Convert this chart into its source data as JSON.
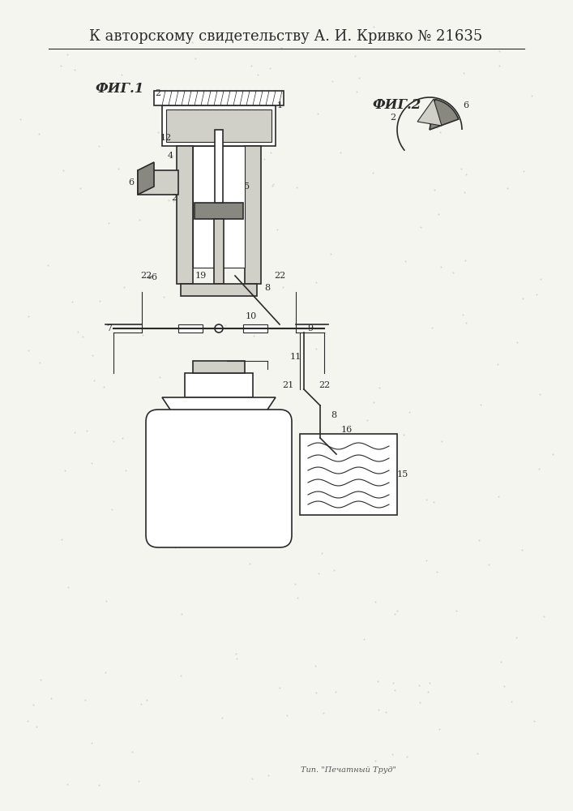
{
  "title": "К авторскому свидетельству А. И. Кривко № 21635",
  "footer": "Тип. \"Печатный Труд\"",
  "fig1_label": "ФИГ.1",
  "fig2_label": "ФИГ.2",
  "bg_color": "#f5f5f0",
  "line_color": "#2a2a2a",
  "fill_color": "#d0d0c8",
  "dark_fill": "#888880",
  "title_fontsize": 13,
  "label_fontsize": 10,
  "small_fontsize": 8
}
